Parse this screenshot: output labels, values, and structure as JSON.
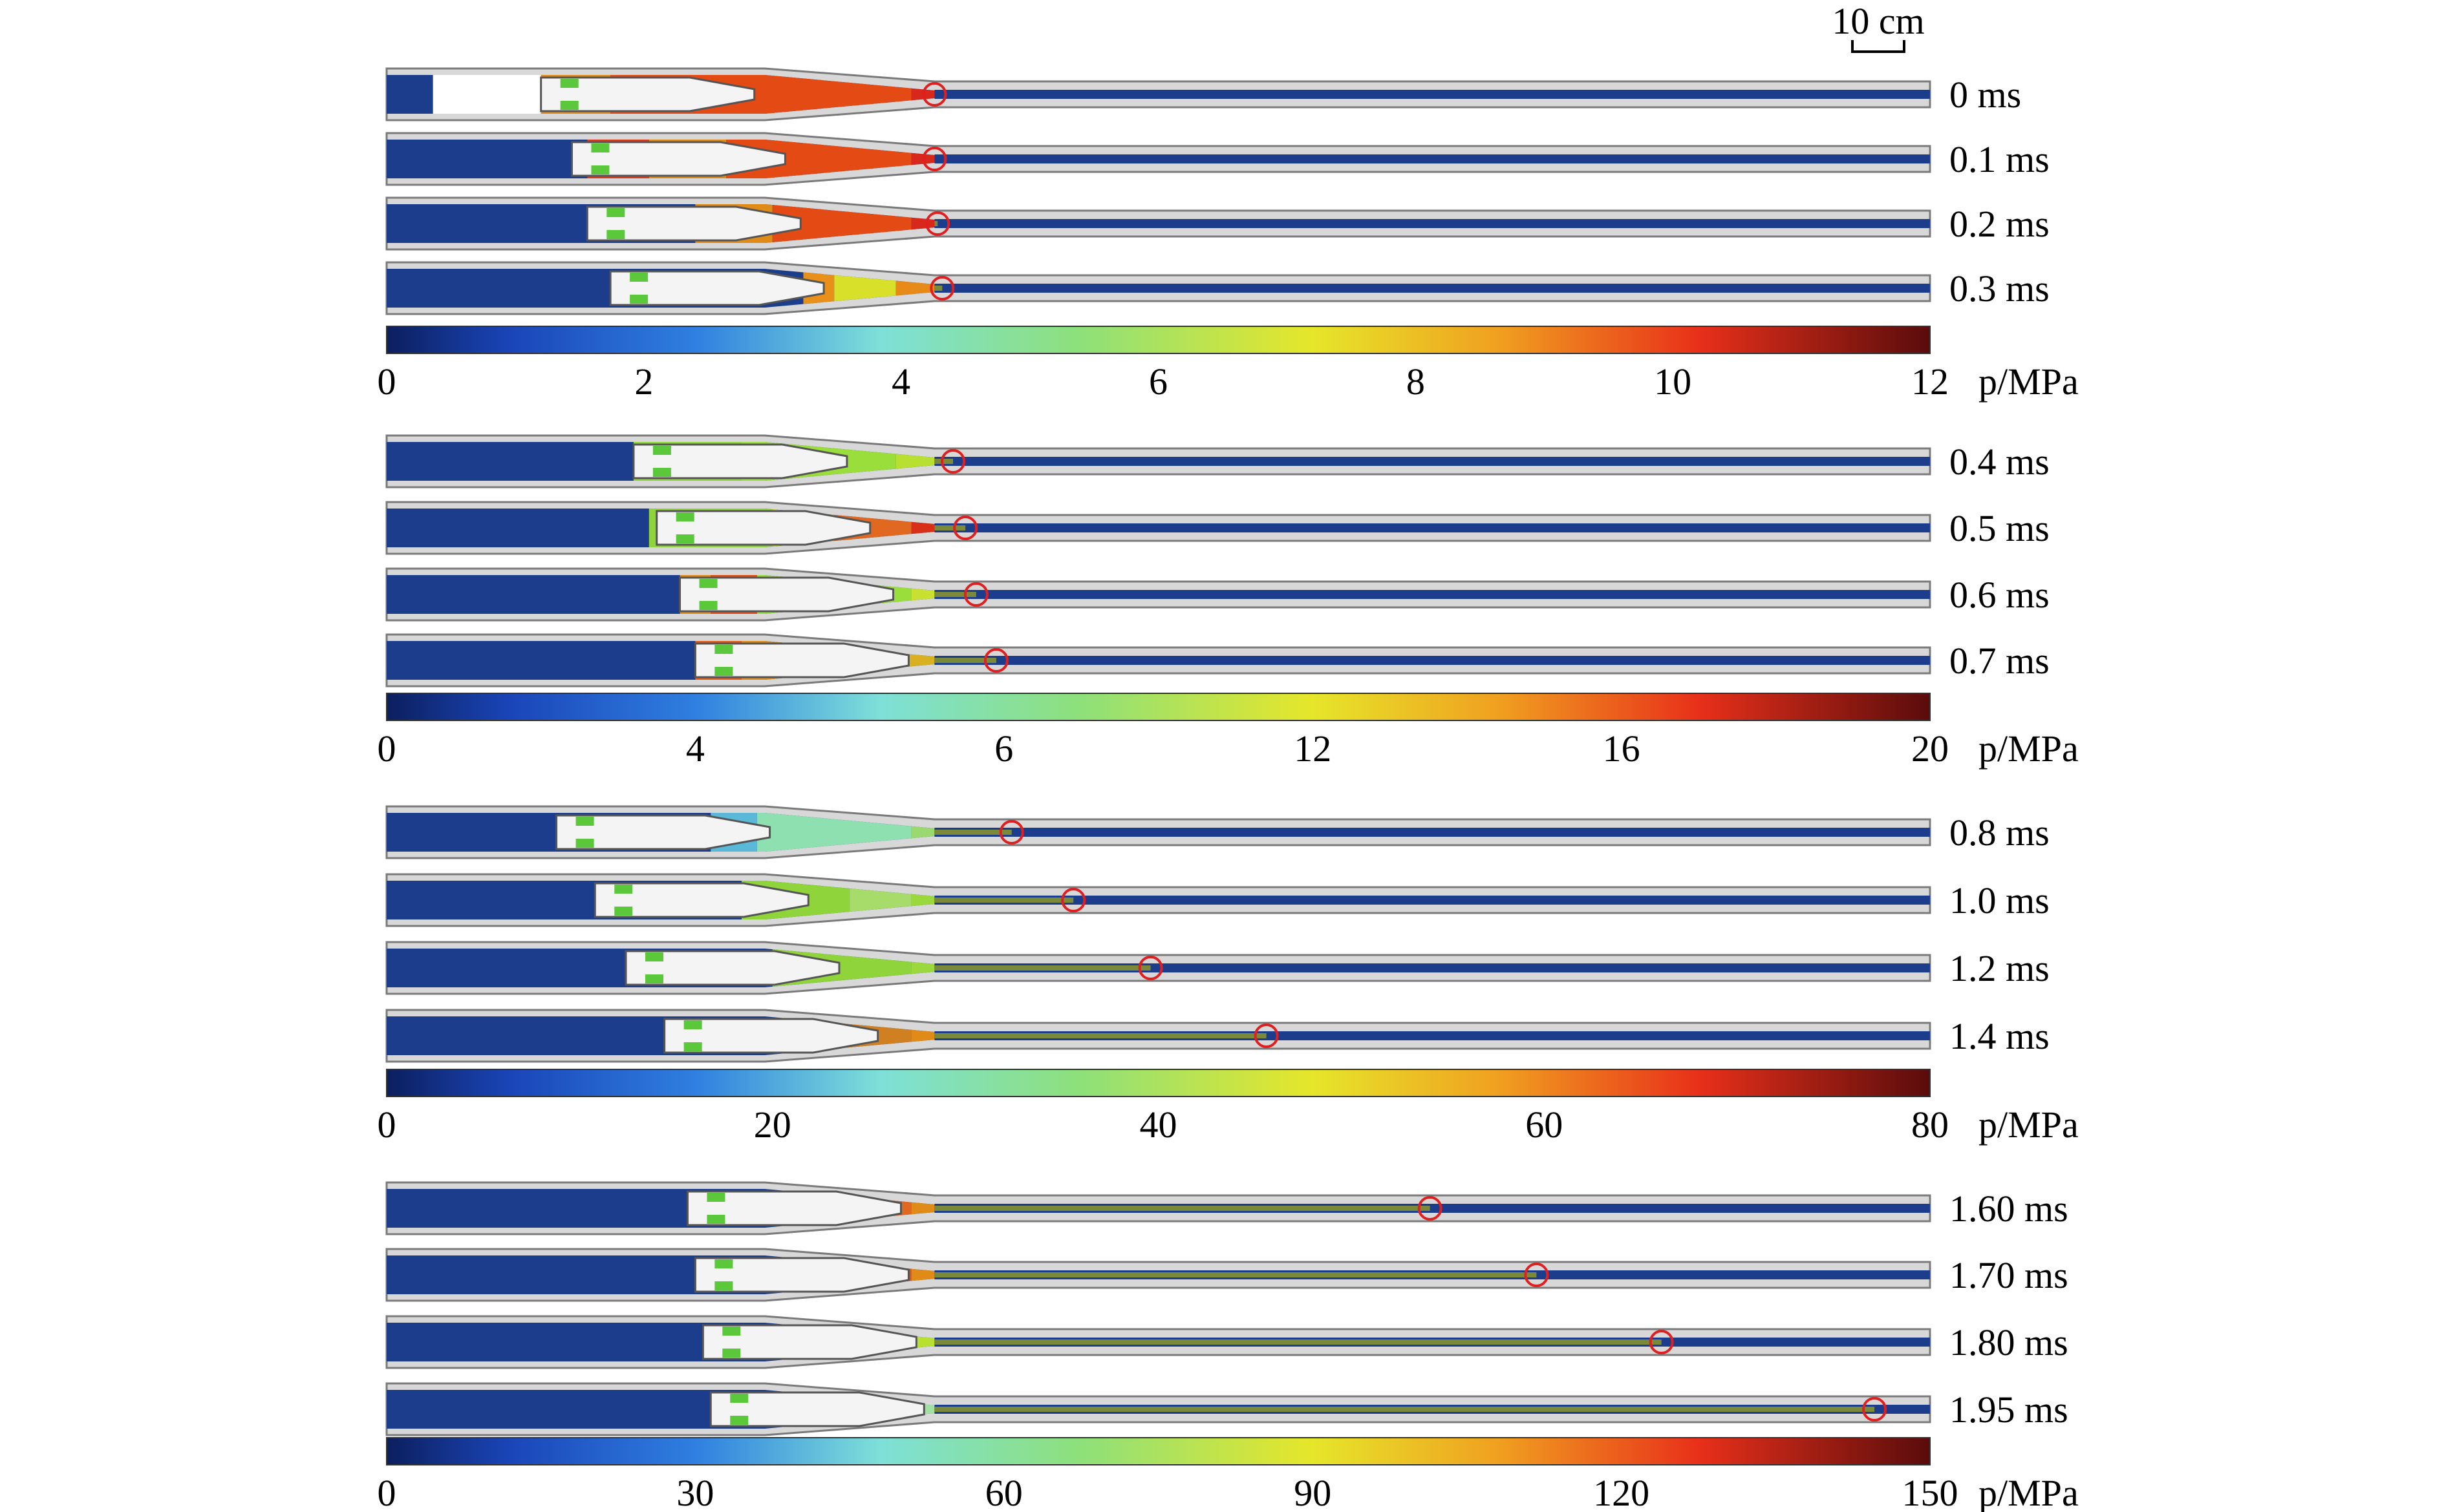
{
  "scale_bar": {
    "label": "10 cm"
  },
  "groups": [
    {
      "unit_label": "p/MPa",
      "ticks": [
        "0",
        "2",
        "4",
        "6",
        "8",
        "10",
        "12"
      ],
      "frames": [
        {
          "time": "0 ms",
          "front": 0.355,
          "piston": 0.1,
          "stops": [
            [
              0.03,
              "#ffffff"
            ],
            [
              0.1,
              "#e08a18"
            ],
            [
              0.145,
              "#e34a14"
            ],
            [
              0.34,
              "#d8281c"
            ]
          ]
        },
        {
          "time": "0.1 ms",
          "front": 0.355,
          "piston": 0.12,
          "stops": [
            [
              0.13,
              "#e2361a"
            ],
            [
              0.17,
              "#e08a18"
            ],
            [
              0.22,
              "#e34a14"
            ],
            [
              0.34,
              "#d8281c"
            ]
          ]
        },
        {
          "time": "0.2 ms",
          "front": 0.357,
          "piston": 0.13,
          "stops": [
            [
              0.2,
              "#e08a18"
            ],
            [
              0.25,
              "#e34a14"
            ],
            [
              0.34,
              "#d8281c"
            ]
          ]
        },
        {
          "time": "0.3 ms",
          "front": 0.36,
          "piston": 0.145,
          "stops": [
            [
              0.27,
              "#e8901a"
            ],
            [
              0.29,
              "#d8e02a"
            ],
            [
              0.33,
              "#e88a18"
            ]
          ]
        }
      ]
    },
    {
      "unit_label": "p/MPa",
      "ticks": [
        "0",
        "4",
        "6",
        "12",
        "16",
        "20"
      ],
      "frames": [
        {
          "time": "0.4 ms",
          "front": 0.367,
          "piston": 0.16,
          "stops": [
            [
              0.16,
              "#8ed43a"
            ],
            [
              0.23,
              "#9ade3c"
            ],
            [
              0.33,
              "#b8e030"
            ]
          ]
        },
        {
          "time": "0.5 ms",
          "front": 0.375,
          "piston": 0.175,
          "stops": [
            [
              0.17,
              "#8ed43a"
            ],
            [
              0.25,
              "#d8e02a"
            ],
            [
              0.29,
              "#e06820"
            ],
            [
              0.34,
              "#d83018"
            ]
          ]
        },
        {
          "time": "0.6 ms",
          "front": 0.382,
          "piston": 0.19,
          "stops": [
            [
              0.19,
              "#e08a18"
            ],
            [
              0.21,
              "#e24a16"
            ],
            [
              0.24,
              "#9ade3c"
            ],
            [
              0.34,
              "#c8e030"
            ]
          ]
        },
        {
          "time": "0.7 ms",
          "front": 0.395,
          "piston": 0.2,
          "stops": [
            [
              0.2,
              "#e35a16"
            ],
            [
              0.23,
              "#e08a18"
            ],
            [
              0.33,
              "#d8b020"
            ]
          ]
        }
      ]
    },
    {
      "unit_label": "p/MPa",
      "ticks": [
        "0",
        "20",
        "40",
        "60",
        "80"
      ],
      "frames": [
        {
          "time": "0.8 ms",
          "front": 0.405,
          "piston": 0.11,
          "stops": [
            [
              0.21,
              "#5ab8d8"
            ],
            [
              0.24,
              "#8ee0b0"
            ],
            [
              0.34,
              "#9ad870"
            ]
          ]
        },
        {
          "time": "1.0 ms",
          "front": 0.445,
          "piston": 0.135,
          "stops": [
            [
              0.23,
              "#8ed43a"
            ],
            [
              0.3,
              "#a8dc6a"
            ],
            [
              0.34,
              "#9ad83c"
            ]
          ]
        },
        {
          "time": "1.2 ms",
          "front": 0.495,
          "piston": 0.155,
          "stops": [
            [
              0.25,
              "#8ed43a"
            ],
            [
              0.34,
              "#9ad83c"
            ]
          ]
        },
        {
          "time": "1.4 ms",
          "front": 0.57,
          "piston": 0.18,
          "stops": [
            [
              0.27,
              "#d08020"
            ],
            [
              0.34,
              "#e08a18"
            ]
          ]
        }
      ]
    },
    {
      "unit_label": "p/MPa",
      "ticks": [
        "0",
        "30",
        "60",
        "90",
        "120",
        "150"
      ],
      "frames": [
        {
          "time": "1.60 ms",
          "front": 0.676,
          "piston": 0.195,
          "stops": [
            [
              0.3,
              "#e06820"
            ],
            [
              0.34,
              "#e08a18"
            ]
          ]
        },
        {
          "time": "1.70 ms",
          "front": 0.745,
          "piston": 0.2,
          "stops": [
            [
              0.3,
              "#e0501a"
            ],
            [
              0.34,
              "#e08a18"
            ]
          ]
        },
        {
          "time": "1.80 ms",
          "front": 0.826,
          "piston": 0.205,
          "stops": [
            [
              0.31,
              "#9ad83c"
            ],
            [
              0.34,
              "#b8e030"
            ]
          ]
        },
        {
          "time": "1.95 ms",
          "front": 0.964,
          "piston": 0.21,
          "stops": [
            [
              0.31,
              "#8ee0c0"
            ],
            [
              0.34,
              "#a0e0a0"
            ]
          ]
        }
      ]
    }
  ],
  "colors": {
    "tube": "#d8d8d8",
    "tube_edge": "#7a7a7a",
    "bore": "#1c3d8c",
    "marker": "#e02020"
  }
}
